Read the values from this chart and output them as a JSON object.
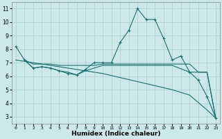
{
  "xlabel": "Humidex (Indice chaleur)",
  "bg_color": "#cce8ea",
  "grid_color": "#afd4d6",
  "line_color": "#1a7070",
  "xlim": [
    -0.5,
    23.5
  ],
  "ylim": [
    2.5,
    11.5
  ],
  "yticks": [
    3,
    4,
    5,
    6,
    7,
    8,
    9,
    10,
    11
  ],
  "xticks": [
    0,
    1,
    2,
    3,
    4,
    5,
    6,
    7,
    8,
    9,
    10,
    11,
    12,
    13,
    14,
    15,
    16,
    17,
    18,
    19,
    20,
    21,
    22,
    23
  ],
  "lines": [
    {
      "x": [
        0,
        1,
        2,
        3,
        4,
        5,
        6,
        7,
        8,
        9,
        10,
        11,
        12,
        13,
        14,
        15,
        16,
        17,
        18,
        19,
        20,
        21,
        22,
        23
      ],
      "y": [
        8.2,
        7.2,
        6.6,
        6.7,
        6.6,
        6.4,
        6.2,
        6.1,
        6.5,
        7.0,
        7.0,
        7.0,
        8.5,
        9.4,
        11.0,
        10.2,
        10.2,
        8.8,
        7.2,
        7.5,
        6.3,
        5.7,
        4.5,
        2.9
      ],
      "marker": "+"
    },
    {
      "x": [
        1,
        2,
        3,
        4,
        5,
        6,
        7,
        8,
        9,
        10,
        11,
        12,
        13,
        14,
        15,
        16,
        17,
        18,
        19,
        20,
        21,
        22,
        23
      ],
      "y": [
        7.2,
        6.9,
        6.9,
        6.9,
        6.8,
        6.8,
        6.8,
        6.8,
        6.8,
        6.9,
        6.9,
        6.9,
        6.9,
        6.9,
        6.9,
        6.9,
        6.9,
        6.9,
        6.9,
        6.9,
        6.3,
        6.3,
        2.9
      ],
      "marker": null
    },
    {
      "x": [
        1,
        2,
        3,
        4,
        5,
        6,
        7,
        8,
        9,
        10,
        11,
        12,
        13,
        14,
        15,
        16,
        17,
        18,
        20,
        22,
        23
      ],
      "y": [
        7.2,
        6.6,
        6.7,
        6.6,
        6.4,
        6.3,
        6.1,
        6.4,
        6.6,
        6.8,
        6.8,
        6.8,
        6.8,
        6.8,
        6.8,
        6.8,
        6.8,
        6.8,
        6.3,
        6.3,
        2.9
      ],
      "marker": null
    },
    {
      "x": [
        0,
        1,
        4,
        8,
        10,
        14,
        18,
        20,
        22,
        23
      ],
      "y": [
        7.2,
        7.1,
        6.8,
        6.4,
        6.2,
        5.6,
        5.0,
        4.6,
        3.5,
        2.9
      ],
      "marker": null
    }
  ]
}
